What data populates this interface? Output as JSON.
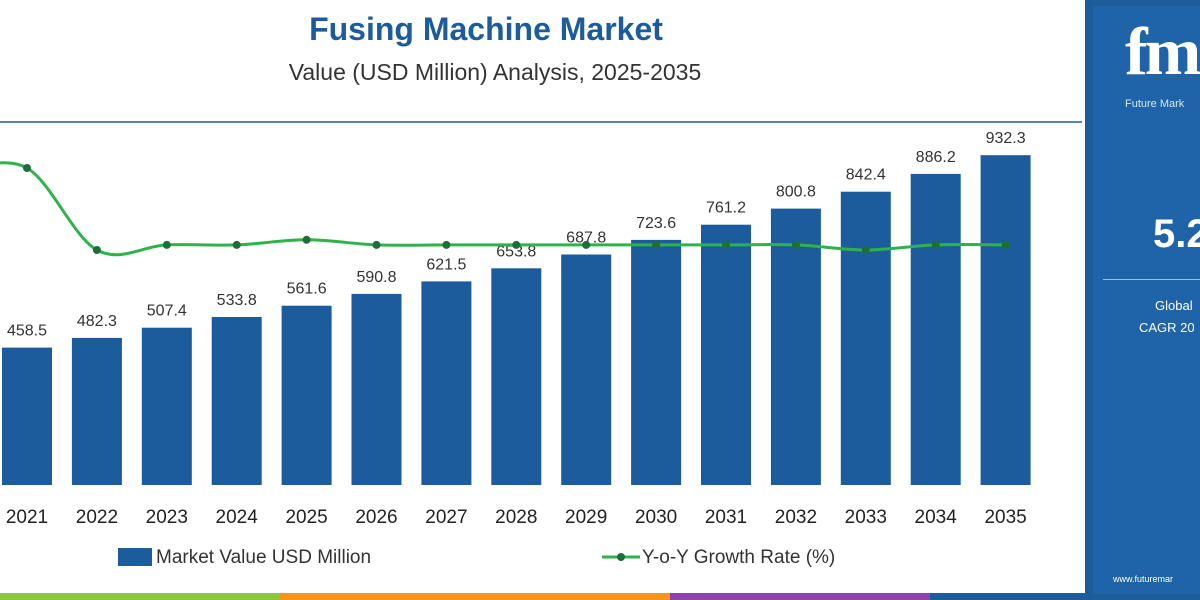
{
  "header": {
    "title": "Fusing Machine Market",
    "subtitle": "Value (USD Million) Analysis, 2025-2035"
  },
  "colors": {
    "bar": "#1c5c9c",
    "line": "#2db34a",
    "title": "#1c5c9c",
    "panel": "#1f64a8",
    "bottom_stripe": [
      "#8dc63f",
      "#f7941d",
      "#8e44ad",
      "#1c5c9c"
    ]
  },
  "side_panel": {
    "logo_text": "fmi",
    "brand": "Future Mark",
    "cagr_value": "5.2",
    "global_label": "Global",
    "cagr_label": "CAGR 20",
    "url": "www.futuremar"
  },
  "chart_data": {
    "type": "bar",
    "categories": [
      "2021",
      "2022",
      "2023",
      "2024",
      "2025",
      "2026",
      "2027",
      "2028",
      "2029",
      "2030",
      "2031",
      "2032",
      "2033",
      "2034",
      "2035"
    ],
    "series": [
      {
        "name": "Market Value USD Million",
        "type": "bar",
        "values": [
          458.5,
          482.3,
          507.4,
          533.8,
          561.6,
          590.8,
          621.5,
          653.8,
          687.8,
          723.6,
          761.2,
          800.8,
          842.4,
          886.2,
          932.3
        ],
        "labels": [
          "458.5",
          "482.3",
          "507.4",
          "533.8",
          "561.6",
          "590.8",
          "621.5",
          "653.8",
          "687.8",
          "723.6",
          "761.2",
          "800.8",
          "842.4",
          "886.2",
          "932.3"
        ]
      },
      {
        "name": "Y-o-Y Growth Rate (%)",
        "type": "line",
        "values": [
          5.35,
          5.19,
          5.2,
          5.2,
          5.21,
          5.2,
          5.2,
          5.2,
          5.2,
          5.2,
          5.2,
          5.2,
          5.19,
          5.2,
          5.2
        ]
      }
    ],
    "grid": false,
    "legend_position": "bottom"
  },
  "legend": {
    "bar_label": "Market Value USD Million",
    "line_label": "Y-o-Y Growth Rate (%)"
  }
}
